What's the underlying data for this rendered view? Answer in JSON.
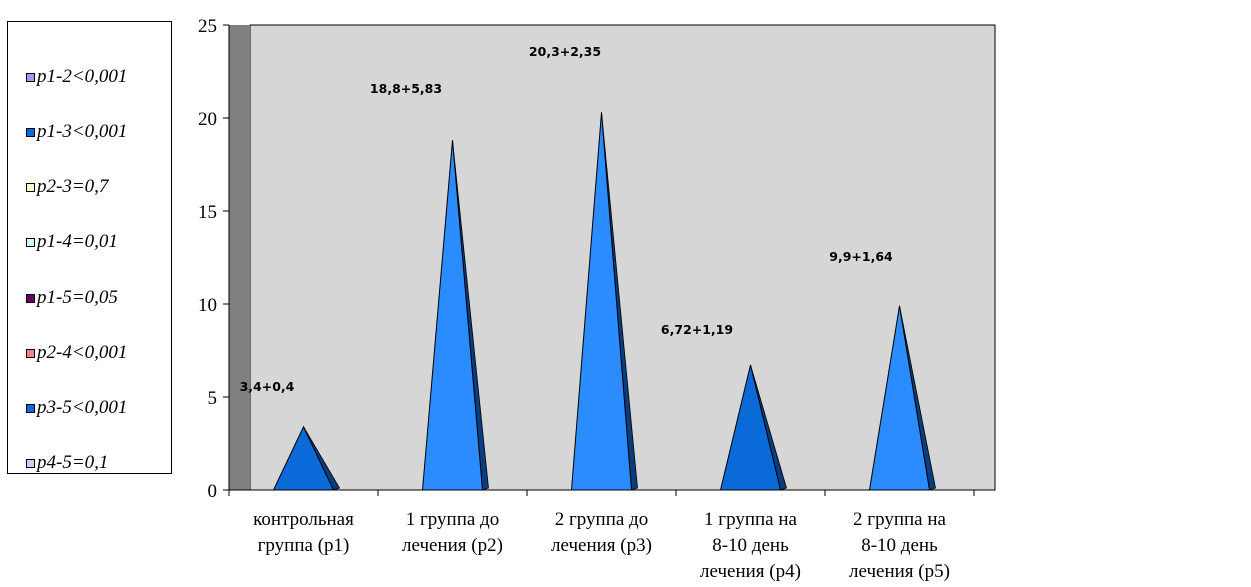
{
  "chart_data": {
    "type": "area",
    "y_ticks": [
      "0",
      "5",
      "10",
      "15",
      "20",
      "25"
    ],
    "ylim": [
      0,
      25
    ],
    "grid": false,
    "legend_position": "left",
    "categories": [
      [
        "контрольная",
        "группа (р1)"
      ],
      [
        "1 группа до",
        "лечения (р2)"
      ],
      [
        "2 группа до",
        "лечения (р3)"
      ],
      [
        "1 группа на",
        "8-10 день",
        "лечения (р4)"
      ],
      [
        "2 группа на",
        "8-10 день",
        "лечения (р5)"
      ]
    ],
    "values": [
      3.4,
      18.8,
      20.3,
      6.72,
      9.9
    ],
    "data_labels": [
      "3,4+0,4",
      "18,8+5,83",
      "20,3+2,35",
      "6,72+1,19",
      "9,9+1,64"
    ],
    "colors": [
      "#0a6ad8",
      "#2a8cff",
      "#2a8cff",
      "#0a6ad8",
      "#2a8cff"
    ],
    "plot_background": "#d6d6d6",
    "wall_color": "#808080"
  },
  "legend": {
    "items": [
      {
        "label": "p1-2<0,001",
        "color": "#9999ff"
      },
      {
        "label": "p1-3<0,001",
        "color": "#0a6ad8"
      },
      {
        "label": "p2-3=0,7",
        "color": "#ffffcc"
      },
      {
        "label": "p1-4=0,01",
        "color": "#ccffff"
      },
      {
        "label": "p1-5=0,05",
        "color": "#660066"
      },
      {
        "label": "p2-4<0,001",
        "color": "#ff8080"
      },
      {
        "label": "p3-5<0,001",
        "color": "#0a6ad8"
      },
      {
        "label": "p4-5=0,1",
        "color": "#ccccff"
      }
    ]
  }
}
